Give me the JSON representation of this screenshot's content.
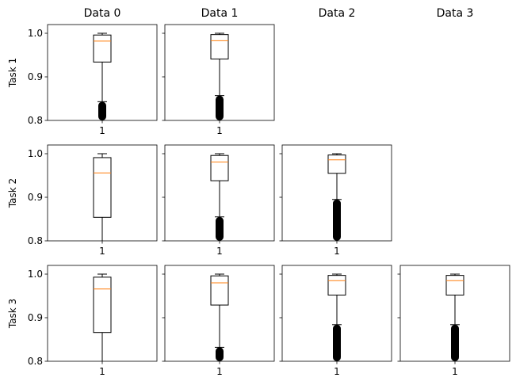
{
  "chart_data": {
    "type": "box",
    "column_titles": [
      "Data 0",
      "Data 1",
      "Data 2",
      "Data 3"
    ],
    "row_labels": [
      "Task 1",
      "Task 2",
      "Task 3"
    ],
    "ylim": [
      0.8,
      1.02
    ],
    "yticks": [
      0.8,
      0.9,
      1.0
    ],
    "ytick_labels": [
      "0.8",
      "0.9",
      "1.0"
    ],
    "xtick_label": "1",
    "sharey": true,
    "colors": {
      "box": "#000000",
      "median": "#ff7f0e",
      "flier": "#000000"
    },
    "panels": [
      {
        "row": 0,
        "col": 0,
        "whisker_low": 0.843,
        "q1": 0.934,
        "median": 0.982,
        "q3": 0.996,
        "whisker_high": 1.0,
        "fliers_range": [
          0.8,
          0.843
        ]
      },
      {
        "row": 0,
        "col": 1,
        "whisker_low": 0.857,
        "q1": 0.941,
        "median": 0.983,
        "q3": 0.997,
        "whisker_high": 1.0,
        "fliers_range": [
          0.8,
          0.857
        ]
      },
      {
        "row": 1,
        "col": 0,
        "whisker_low": 0.8,
        "q1": 0.854,
        "median": 0.956,
        "q3": 0.991,
        "whisker_high": 1.0,
        "fliers_range": null
      },
      {
        "row": 1,
        "col": 1,
        "whisker_low": 0.855,
        "q1": 0.938,
        "median": 0.981,
        "q3": 0.996,
        "whisker_high": 1.0,
        "fliers_range": [
          0.8,
          0.855
        ]
      },
      {
        "row": 1,
        "col": 2,
        "whisker_low": 0.895,
        "q1": 0.955,
        "median": 0.986,
        "q3": 0.997,
        "whisker_high": 1.0,
        "fliers_range": [
          0.8,
          0.895
        ]
      },
      {
        "row": 2,
        "col": 0,
        "whisker_low": 0.8,
        "q1": 0.866,
        "median": 0.966,
        "q3": 0.993,
        "whisker_high": 1.0,
        "fliers_range": null
      },
      {
        "row": 2,
        "col": 1,
        "whisker_low": 0.832,
        "q1": 0.929,
        "median": 0.98,
        "q3": 0.996,
        "whisker_high": 1.0,
        "fliers_range": [
          0.8,
          0.832
        ]
      },
      {
        "row": 2,
        "col": 2,
        "whisker_low": 0.884,
        "q1": 0.952,
        "median": 0.985,
        "q3": 0.997,
        "whisker_high": 1.0,
        "fliers_range": [
          0.8,
          0.884
        ]
      },
      {
        "row": 2,
        "col": 3,
        "whisker_low": 0.884,
        "q1": 0.952,
        "median": 0.985,
        "q3": 0.997,
        "whisker_high": 1.0,
        "fliers_range": [
          0.8,
          0.884
        ]
      }
    ]
  }
}
